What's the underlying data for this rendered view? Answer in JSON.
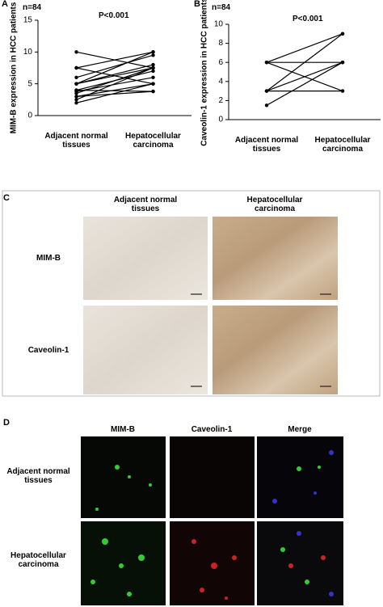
{
  "chart_data": [
    {
      "type": "paired-line",
      "panel_label": "A",
      "note": "n=84",
      "annotation": "P<0.001",
      "y_label": "MIM-B expression in HCC patients",
      "categories": [
        "Adjacent normal tissues",
        "Hepatocellular carcinoma"
      ],
      "ylim": [
        0,
        15
      ],
      "yticks": [
        0,
        5,
        10,
        15
      ],
      "color": "#000000",
      "series": [
        {
          "values": [
            10,
            7.5
          ]
        },
        {
          "values": [
            7.5,
            10
          ]
        },
        {
          "values": [
            7.5,
            5
          ]
        },
        {
          "values": [
            6,
            9.5
          ]
        },
        {
          "values": [
            5,
            10
          ]
        },
        {
          "values": [
            5,
            7.5
          ]
        },
        {
          "values": [
            5,
            8
          ]
        },
        {
          "values": [
            4,
            7
          ]
        },
        {
          "values": [
            3.8,
            6
          ]
        },
        {
          "values": [
            3.5,
            7.5
          ]
        },
        {
          "values": [
            3,
            5
          ]
        },
        {
          "values": [
            2.5,
            7.5
          ]
        },
        {
          "values": [
            2,
            5
          ]
        },
        {
          "values": [
            3,
            3.8
          ]
        },
        {
          "values": [
            4,
            3.8
          ]
        }
      ]
    },
    {
      "type": "paired-line",
      "panel_label": "B",
      "note": "n=84",
      "annotation": "P<0.001",
      "y_label": "Caveolin-1 expression in HCC patients",
      "categories": [
        "Adjacent normal tissues",
        "Hepatocellular carcinoma"
      ],
      "ylim": [
        0,
        10
      ],
      "yticks": [
        0,
        2,
        4,
        6,
        8,
        10
      ],
      "color": "#000000",
      "series": [
        {
          "values": [
            6,
            9
          ]
        },
        {
          "values": [
            6,
            6
          ]
        },
        {
          "values": [
            6,
            3
          ]
        },
        {
          "values": [
            3,
            9
          ]
        },
        {
          "values": [
            3,
            6
          ]
        },
        {
          "values": [
            3,
            3
          ]
        },
        {
          "values": [
            1.5,
            6
          ]
        }
      ]
    }
  ],
  "panel_c": {
    "label": "C",
    "columns": [
      "Adjacent normal tissues",
      "Hepatocellular carcinoma"
    ],
    "rows": [
      "MIM-B",
      "Caveolin-1"
    ]
  },
  "panel_d": {
    "label": "D",
    "columns": [
      "MIM-B",
      "Caveolin-1",
      "Merge"
    ],
    "rows": [
      "Adjacent normal tissues",
      "Hepatocellular carcinoma"
    ]
  }
}
